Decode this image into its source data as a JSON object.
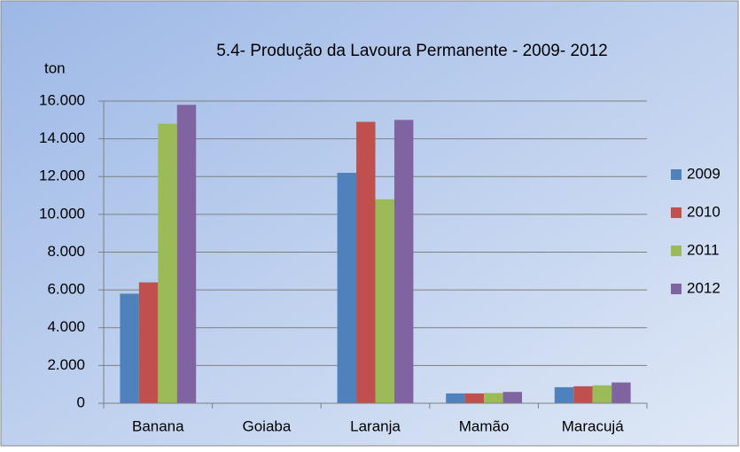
{
  "chart_data": {
    "type": "bar",
    "title": "5.4- Produção da Lavoura Permanente - 2009- 2012",
    "y_label": "ton",
    "categories": [
      "Banana",
      "Goiaba",
      "Laranja",
      "Mamão",
      "Maracujá"
    ],
    "series": [
      {
        "name": "2009",
        "color": "#4f81bd",
        "values": [
          5800,
          0,
          12200,
          520,
          850
        ]
      },
      {
        "name": "2010",
        "color": "#c0504d",
        "values": [
          6400,
          0,
          14900,
          520,
          900
        ]
      },
      {
        "name": "2011",
        "color": "#9bbb59",
        "values": [
          14800,
          0,
          10800,
          540,
          950
        ]
      },
      {
        "name": "2012",
        "color": "#8064a2",
        "values": [
          15800,
          0,
          15000,
          600,
          1100
        ]
      }
    ],
    "ylim": [
      0,
      16000
    ],
    "yticks": [
      0,
      {
        "value": 2000,
        "label": "2.000"
      },
      {
        "value": 4000,
        "label": "4.000"
      },
      {
        "value": 6000,
        "label": "6.000"
      },
      {
        "value": 8000,
        "label": "8.000"
      },
      {
        "value": 10000,
        "label": "10.000"
      },
      {
        "value": 12000,
        "label": "12.000"
      },
      {
        "value": 14000,
        "label": "14.000"
      },
      {
        "value": 16000,
        "label": "16.000"
      }
    ],
    "grid": true,
    "legend": "right"
  }
}
